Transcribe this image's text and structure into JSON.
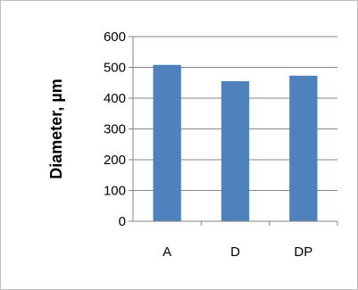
{
  "chart_data": {
    "type": "bar",
    "title": "",
    "xlabel": "",
    "ylabel": "Diameter, µm",
    "categories": [
      "A",
      "D",
      "DP"
    ],
    "values": [
      508,
      455,
      473
    ],
    "ylim": [
      0,
      600
    ],
    "yticks": [
      0,
      100,
      200,
      300,
      400,
      500,
      600
    ],
    "grid": true,
    "legend": "none",
    "bar_color": "#4f81bd",
    "grid_color": "#868686"
  }
}
